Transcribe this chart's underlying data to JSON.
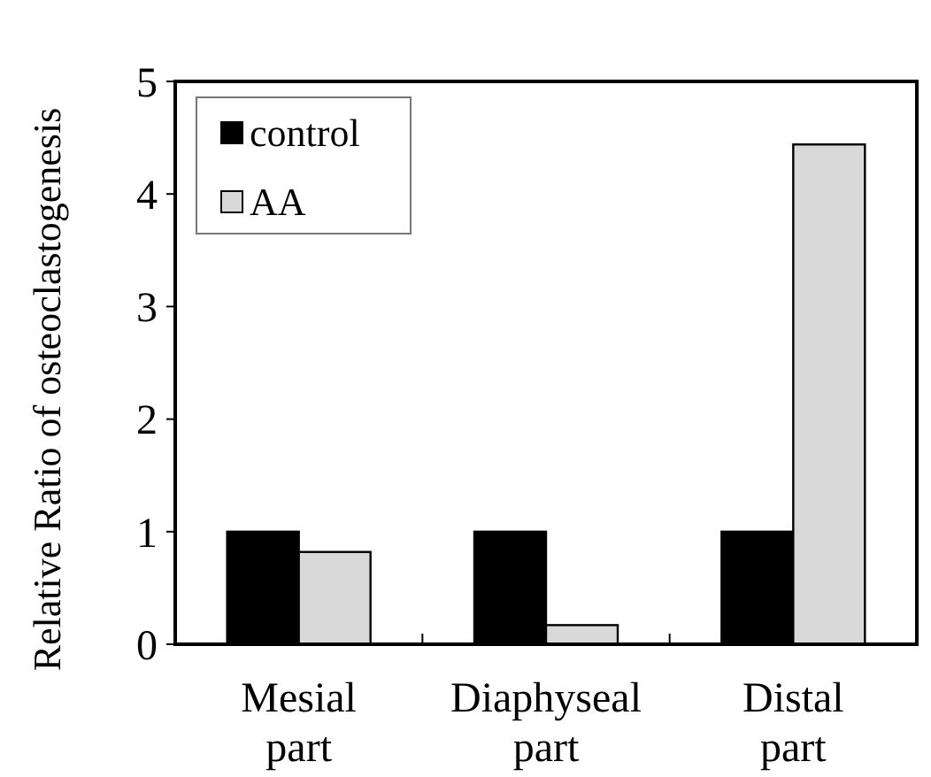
{
  "chart_data": {
    "type": "bar",
    "ylabel": "Relative Ratio of osteoclastogenesis",
    "categories": [
      "Mesial\npart",
      "Diaphyseal\npart",
      "Distal\npart"
    ],
    "series": [
      {
        "name": "control",
        "color": "#000000",
        "values": [
          1,
          1,
          1
        ]
      },
      {
        "name": "AA",
        "color": "#d9d9d9",
        "values": [
          0.82,
          0.17,
          4.44
        ]
      }
    ],
    "ylim": [
      0,
      5
    ],
    "yticks": [
      0,
      1,
      2,
      3,
      4,
      5
    ],
    "legend": "top left",
    "grid": false
  }
}
